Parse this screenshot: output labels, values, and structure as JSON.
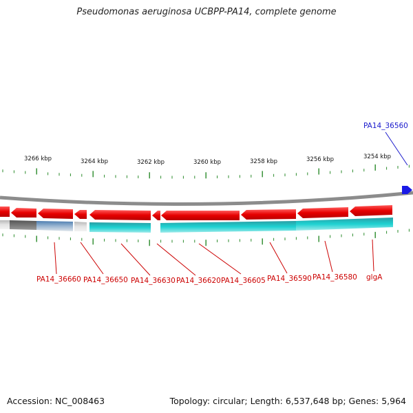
{
  "title": "Pseudomonas aeruginosa UCBPP-PA14, complete genome",
  "footer": {
    "accession": "Accession: NC_008463",
    "topology": "Topology: circular; Length: 6,537,648 bp; Genes: 5,964"
  },
  "colors": {
    "backbone": "#8a8a8a",
    "gene_forward_highlight": "#1a1ae6",
    "gene": "#e60000",
    "cds_feature": "#1ec8c8",
    "label_red": "#cc0000",
    "label_blue": "#1a1acc",
    "tick": "#2a8a2a"
  },
  "scale_labels": [
    "3266 kbp",
    "3264 kbp",
    "3262 kbp",
    "3260 kbp",
    "3258 kbp",
    "3256 kbp",
    "3254 kbp"
  ],
  "gene_labels": [
    {
      "text": "PA14_36560",
      "color": "blue"
    },
    {
      "text": "PA14_36660",
      "color": "red"
    },
    {
      "text": "PA14_36650",
      "color": "red"
    },
    {
      "text": "PA14_36630",
      "color": "red"
    },
    {
      "text": "PA14_36620",
      "color": "red"
    },
    {
      "text": "PA14_36605",
      "color": "red"
    },
    {
      "text": "PA14_36590",
      "color": "red"
    },
    {
      "text": "PA14_36580",
      "color": "red"
    },
    {
      "text": "glgA",
      "color": "red"
    }
  ]
}
